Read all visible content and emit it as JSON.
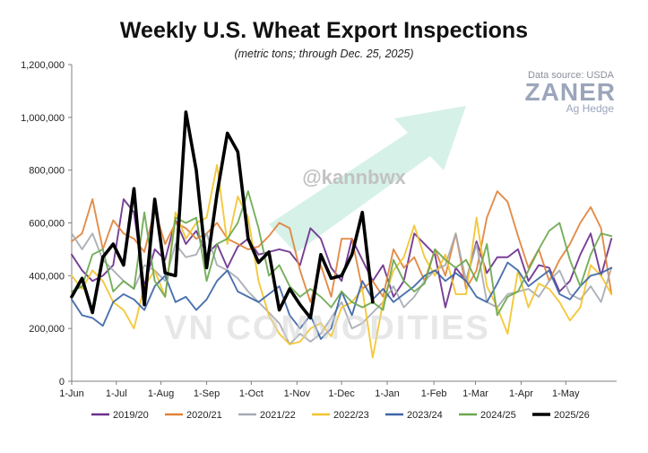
{
  "header": {
    "title": "Weekly U.S. Wheat Export Inspections",
    "subtitle": "(metric tons; through Dec. 25, 2025)",
    "source": "Data source: USDA",
    "logo_main": "ZANER",
    "logo_sub": "Ag Hedge"
  },
  "watermarks": {
    "handle": "@kannbwx",
    "company": "VN COMMODITIES"
  },
  "chart_data": {
    "type": "line",
    "title": "Weekly U.S. Wheat Export Inspections",
    "subtitle": "(metric tons; through Dec. 25, 2025)",
    "xlabel": "",
    "ylabel": "",
    "ylim": [
      0,
      1200000
    ],
    "y_ticks": [
      {
        "value": 0,
        "label": "0"
      },
      {
        "value": 200000,
        "label": "200,000"
      },
      {
        "value": 400000,
        "label": "400,000"
      },
      {
        "value": 600000,
        "label": "600,000"
      },
      {
        "value": 800000,
        "label": "800,000"
      },
      {
        "value": 1000000,
        "label": "1,000,000"
      },
      {
        "value": 1200000,
        "label": "1,200,000"
      }
    ],
    "x_ticks": [
      "1-Jun",
      "1-Jul",
      "1-Aug",
      "1-Sep",
      "1-Oct",
      "1-Nov",
      "1-Dec",
      "1-Jan",
      "1-Feb",
      "1-Mar",
      "1-Apr",
      "1-May"
    ],
    "x_tick_weeks": [
      0,
      4.3,
      8.6,
      13,
      17.3,
      21.7,
      26,
      30.4,
      34.9,
      38.9,
      43.3,
      47.6
    ],
    "x_range_weeks": [
      0,
      52.5
    ],
    "grid": false,
    "legend_position": "bottom",
    "series": [
      {
        "name": "2019/20",
        "color": "#6b2f8c",
        "values": [
          480000,
          420000,
          380000,
          400000,
          440000,
          690000,
          640000,
          360000,
          500000,
          460000,
          610000,
          520000,
          570000,
          480000,
          520000,
          430000,
          510000,
          540000,
          480000,
          490000,
          500000,
          490000,
          440000,
          580000,
          540000,
          430000,
          380000,
          540000,
          460000,
          380000,
          440000,
          320000,
          380000,
          560000,
          520000,
          480000,
          280000,
          430000,
          380000,
          530000,
          410000,
          470000,
          470000,
          500000,
          380000,
          440000,
          430000,
          340000,
          380000,
          480000,
          560000,
          400000,
          540000
        ]
      },
      {
        "name": "2020/21",
        "color": "#e0833b",
        "values": [
          530000,
          560000,
          690000,
          500000,
          610000,
          560000,
          540000,
          490000,
          650000,
          520000,
          600000,
          580000,
          540000,
          560000,
          600000,
          540000,
          520000,
          500000,
          510000,
          550000,
          600000,
          580000,
          420000,
          300000,
          440000,
          320000,
          540000,
          540000,
          350000,
          380000,
          320000,
          500000,
          430000,
          470000,
          380000,
          500000,
          400000,
          560000,
          350000,
          420000,
          620000,
          720000,
          680000,
          550000,
          430000,
          500000,
          380000,
          460000,
          520000,
          600000,
          660000,
          580000,
          330000
        ]
      },
      {
        "name": "2021/22",
        "color": "#a6aab2",
        "values": [
          560000,
          500000,
          560000,
          460000,
          420000,
          380000,
          350000,
          440000,
          420000,
          380000,
          520000,
          470000,
          480000,
          560000,
          440000,
          420000,
          390000,
          340000,
          300000,
          260000,
          220000,
          140000,
          180000,
          150000,
          180000,
          240000,
          300000,
          200000,
          220000,
          260000,
          300000,
          360000,
          280000,
          320000,
          380000,
          420000,
          440000,
          560000,
          380000,
          520000,
          300000,
          280000,
          330000,
          340000,
          350000,
          320000,
          380000,
          420000,
          330000,
          310000,
          360000,
          300000,
          430000
        ]
      },
      {
        "name": "2022/23",
        "color": "#f2c42d",
        "values": [
          400000,
          350000,
          420000,
          380000,
          300000,
          270000,
          200000,
          360000,
          420000,
          320000,
          640000,
          540000,
          600000,
          620000,
          820000,
          520000,
          700000,
          620000,
          380000,
          250000,
          180000,
          140000,
          150000,
          200000,
          220000,
          170000,
          280000,
          300000,
          350000,
          90000,
          300000,
          420000,
          470000,
          590000,
          470000,
          400000,
          480000,
          330000,
          330000,
          620000,
          360000,
          280000,
          180000,
          420000,
          280000,
          370000,
          350000,
          300000,
          230000,
          280000,
          440000,
          400000,
          330000
        ]
      },
      {
        "name": "2023/24",
        "color": "#3c66a6",
        "values": [
          310000,
          250000,
          240000,
          210000,
          300000,
          330000,
          310000,
          270000,
          360000,
          400000,
          300000,
          320000,
          270000,
          310000,
          380000,
          420000,
          340000,
          320000,
          300000,
          330000,
          360000,
          250000,
          200000,
          250000,
          160000,
          200000,
          340000,
          250000,
          380000,
          310000,
          350000,
          300000,
          330000,
          360000,
          400000,
          420000,
          380000,
          410000,
          380000,
          320000,
          300000,
          370000,
          450000,
          420000,
          360000,
          390000,
          420000,
          330000,
          310000,
          360000,
          400000,
          410000,
          430000
        ]
      },
      {
        "name": "2024/25",
        "color": "#6aa84f",
        "values": [
          340000,
          360000,
          480000,
          500000,
          340000,
          380000,
          350000,
          640000,
          380000,
          320000,
          620000,
          600000,
          620000,
          380000,
          520000,
          540000,
          600000,
          720000,
          580000,
          400000,
          440000,
          360000,
          320000,
          350000,
          320000,
          280000,
          340000,
          300000,
          280000,
          300000,
          270000,
          460000,
          380000,
          340000,
          370000,
          500000,
          460000,
          430000,
          460000,
          380000,
          520000,
          250000,
          320000,
          340000,
          420000,
          500000,
          570000,
          600000,
          460000,
          360000,
          480000,
          560000,
          550000
        ]
      },
      {
        "name": "2025/26",
        "color": "#000000",
        "values": [
          320000,
          390000,
          260000,
          470000,
          520000,
          440000,
          730000,
          290000,
          690000,
          410000,
          400000,
          1020000,
          800000,
          430000,
          710000,
          940000,
          870000,
          540000,
          450000,
          490000,
          270000,
          350000,
          290000,
          240000,
          480000,
          390000,
          400000,
          480000,
          640000,
          300000
        ]
      }
    ]
  }
}
